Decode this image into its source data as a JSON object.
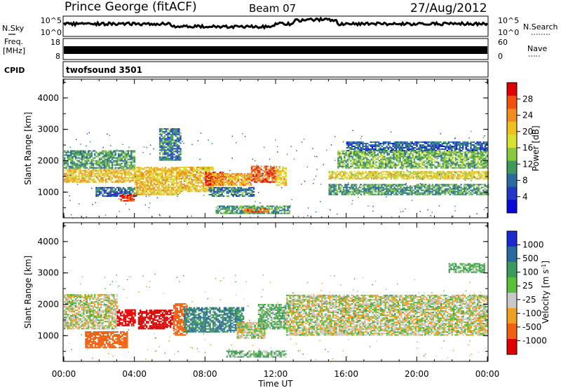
{
  "header": {
    "station": "Prince George (fitACF)",
    "beam": "Beam 07",
    "date": "27/Aug/2012"
  },
  "noise_panel": {
    "left_label": "N.Sky",
    "right_label": "N.Search",
    "left_ticks": [
      "10^5",
      "10^0"
    ],
    "right_ticks": [
      "10^5",
      "10^0"
    ]
  },
  "freq_panel": {
    "left_label_1": "Freq.",
    "left_label_2": "[MHz]",
    "left_ticks": [
      "18",
      "8"
    ],
    "right_label": "Nave",
    "right_ticks": [
      "60",
      "0"
    ]
  },
  "cpid": {
    "label": "CPID",
    "value": "twofsound 3501"
  },
  "power_colorbar": {
    "label": "Power [dB]",
    "ticks": [
      "28",
      "24",
      "20",
      "16",
      "12",
      "8",
      "4"
    ],
    "colors": [
      "#e00000",
      "#f05010",
      "#f08c20",
      "#f0c020",
      "#d8e030",
      "#88c840",
      "#3c9a5c",
      "#2a6aa0",
      "#2438c8",
      "#0a0ad8"
    ]
  },
  "velocity_colorbar": {
    "label": "Velocity [m s^-1]",
    "ticks": [
      "1000",
      "500",
      "100",
      "25",
      "-25",
      "-100",
      "-500",
      "-1000"
    ],
    "colors": [
      "#1a2ad0",
      "#2a6aa0",
      "#3c9a5c",
      "#58c038",
      "#c8c8c8",
      "#f0a020",
      "#f06010",
      "#e00000"
    ]
  },
  "x_axis": {
    "label": "Time UT",
    "ticks": [
      "00:00",
      "04:00",
      "08:00",
      "12:00",
      "16:00",
      "20:00",
      "00:00"
    ]
  },
  "chart_data": [
    {
      "type": "heatmap",
      "title": "Power",
      "ylabel": "Slant Range [km]",
      "xlabel": "Time UT",
      "xlim": [
        0,
        24
      ],
      "ylim": [
        180,
        4600
      ],
      "yticks": [
        "4000",
        "3000",
        "2000",
        "1000"
      ],
      "colorbar": "Power [dB]",
      "regions": [
        {
          "t0": 0.0,
          "t1": 4.0,
          "r0": 1300,
          "r1": 1750,
          "v": 20
        },
        {
          "t0": 0.0,
          "t1": 4.0,
          "r0": 1750,
          "r1": 2300,
          "v": 10
        },
        {
          "t0": 1.8,
          "t1": 4.2,
          "r0": 850,
          "r1": 1150,
          "v": 6
        },
        {
          "t0": 3.2,
          "t1": 4.0,
          "r0": 700,
          "r1": 900,
          "v": 28
        },
        {
          "t0": 4.0,
          "t1": 6.6,
          "r0": 900,
          "r1": 1800,
          "v": 20
        },
        {
          "t0": 5.4,
          "t1": 6.6,
          "r0": 2000,
          "r1": 3000,
          "v": 8
        },
        {
          "t0": 6.6,
          "t1": 8.4,
          "r0": 1000,
          "r1": 1800,
          "v": 20
        },
        {
          "t0": 8.0,
          "t1": 9.0,
          "r0": 1200,
          "r1": 1650,
          "v": 28
        },
        {
          "t0": 8.4,
          "t1": 10.6,
          "r0": 1200,
          "r1": 1600,
          "v": 22
        },
        {
          "t0": 8.2,
          "t1": 10.8,
          "r0": 850,
          "r1": 1150,
          "v": 8
        },
        {
          "t0": 8.6,
          "t1": 12.8,
          "r0": 300,
          "r1": 550,
          "v": 10
        },
        {
          "t0": 10.2,
          "t1": 11.6,
          "r0": 350,
          "r1": 450,
          "v": 26
        },
        {
          "t0": 10.6,
          "t1": 12.0,
          "r0": 1300,
          "r1": 1800,
          "v": 26
        },
        {
          "t0": 12.0,
          "t1": 12.6,
          "r0": 1200,
          "r1": 1800,
          "v": 20
        },
        {
          "t0": 15.0,
          "t1": 24.0,
          "r0": 1400,
          "r1": 1650,
          "v": 18
        },
        {
          "t0": 15.5,
          "t1": 24.0,
          "r0": 1750,
          "r1": 2300,
          "v": 12
        },
        {
          "t0": 15.0,
          "t1": 24.0,
          "r0": 900,
          "r1": 1250,
          "v": 10
        },
        {
          "t0": 16.0,
          "t1": 24.0,
          "r0": 2300,
          "r1": 2600,
          "v": 6
        }
      ]
    },
    {
      "type": "heatmap",
      "title": "Velocity",
      "ylabel": "Slant Range [km]",
      "xlabel": "Time UT",
      "xlim": [
        0,
        24
      ],
      "ylim": [
        180,
        4600
      ],
      "yticks": [
        "4000",
        "3000",
        "2000",
        "1000"
      ],
      "colorbar": "Velocity [m s^-1]",
      "regions": [
        {
          "t0": 0.0,
          "t1": 3.0,
          "r0": 1200,
          "r1": 2300,
          "v": 0
        },
        {
          "t0": 1.2,
          "t1": 3.6,
          "r0": 600,
          "r1": 1100,
          "v": -300
        },
        {
          "t0": 3.0,
          "t1": 4.0,
          "r0": 1300,
          "r1": 1800,
          "v": -800
        },
        {
          "t0": 4.2,
          "t1": 6.2,
          "r0": 1200,
          "r1": 1800,
          "v": -900
        },
        {
          "t0": 6.2,
          "t1": 7.0,
          "r0": 1000,
          "r1": 2000,
          "v": -200
        },
        {
          "t0": 6.8,
          "t1": 10.2,
          "r0": 1100,
          "r1": 1900,
          "v": 300
        },
        {
          "t0": 9.8,
          "t1": 11.4,
          "r0": 900,
          "r1": 1400,
          "v": 0
        },
        {
          "t0": 11.0,
          "t1": 12.6,
          "r0": 1200,
          "r1": 2000,
          "v": 60
        },
        {
          "t0": 9.2,
          "t1": 12.6,
          "r0": 300,
          "r1": 500,
          "v": 60
        },
        {
          "t0": 12.6,
          "t1": 24.0,
          "r0": 1000,
          "r1": 2300,
          "v": 0
        },
        {
          "t0": 21.8,
          "t1": 23.8,
          "r0": 3000,
          "r1": 3300,
          "v": 60
        }
      ]
    }
  ]
}
